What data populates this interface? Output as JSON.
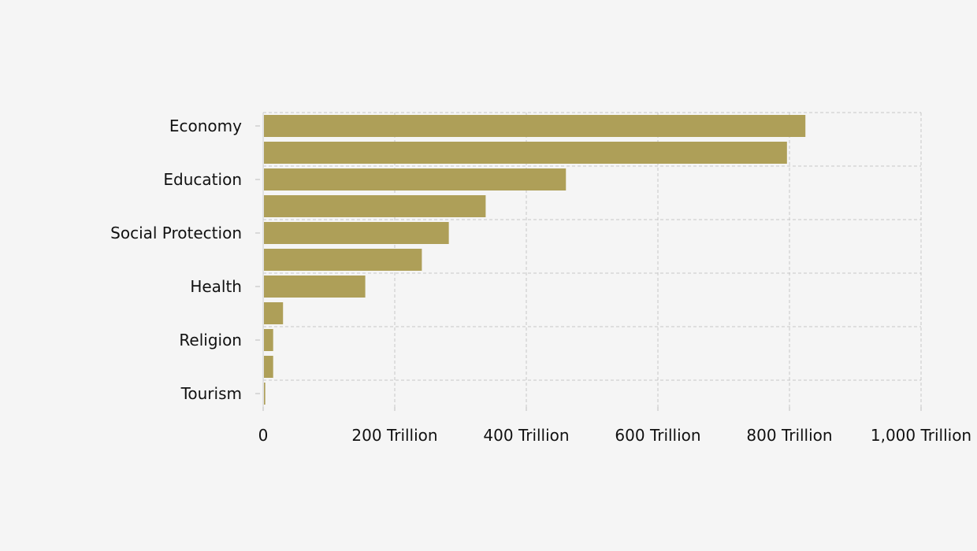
{
  "chart_data": {
    "type": "bar",
    "orientation": "horizontal",
    "categories": [
      "Economy",
      "",
      "Education",
      "",
      "Social Protection",
      "",
      "Health",
      "",
      "Religion",
      "",
      "Tourism"
    ],
    "values": [
      823000000000000,
      795000000000000,
      459000000000000,
      337000000000000,
      281000000000000,
      240000000000000,
      154000000000000,
      29000000000000,
      14000000000000,
      14000000000000,
      2000000000000
    ],
    "x_ticks": [
      0,
      200000000000000,
      400000000000000,
      600000000000000,
      800000000000000,
      1000000000000000
    ],
    "x_tick_labels": [
      "0",
      "200 Trillion",
      "400 Trillion",
      "600 Trillion",
      "800 Trillion",
      "1,000 Trillion"
    ],
    "xlim": [
      0,
      1000000000000000
    ],
    "grid": true,
    "bar_color": "#ae9f58",
    "title": "",
    "xlabel": "",
    "ylabel": ""
  }
}
